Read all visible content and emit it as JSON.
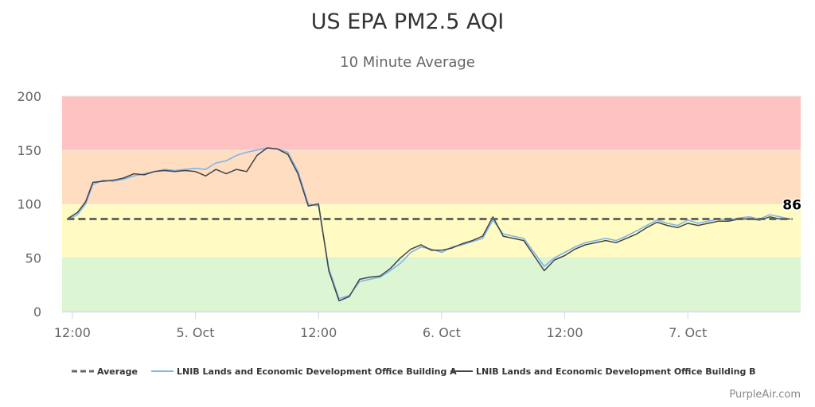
{
  "chart_data": {
    "type": "line",
    "title": "US EPA PM2.5 AQI",
    "subtitle": "10 Minute Average",
    "x_unit": "hours from 4 Oct 00:00",
    "x_ticks": [
      {
        "x": 12,
        "label": "12:00"
      },
      {
        "x": 24,
        "label": "5. Oct"
      },
      {
        "x": 36,
        "label": "12:00"
      },
      {
        "x": 48,
        "label": "6. Oct"
      },
      {
        "x": 60,
        "label": "12:00"
      },
      {
        "x": 72,
        "label": "7. Oct"
      }
    ],
    "xlim": [
      11,
      83
    ],
    "ylim": [
      0,
      200
    ],
    "y_ticks": [
      0,
      50,
      100,
      150,
      200
    ],
    "grid": true,
    "bands": [
      {
        "from": 0,
        "to": 50,
        "color": "#dcf5d3"
      },
      {
        "from": 50,
        "to": 100,
        "color": "#fffbc2"
      },
      {
        "from": 100,
        "to": 150,
        "color": "#ffddc0"
      },
      {
        "from": 150,
        "to": 200,
        "color": "#ffc2c2"
      }
    ],
    "average": {
      "name": "Average",
      "value": 86,
      "color": "#666666"
    },
    "last_value_label": "86",
    "series": [
      {
        "name": "LNIB Lands and Economic Development Office Building A",
        "color": "#7cb5ec",
        "x": [
          11.5,
          12.5,
          13.3,
          14,
          15,
          16,
          17,
          18,
          19,
          20,
          21,
          22,
          23,
          24,
          25,
          26,
          27,
          28,
          29,
          30,
          31,
          32,
          33,
          34,
          35,
          36,
          37,
          38,
          39,
          40,
          41,
          42,
          43,
          44,
          45,
          46,
          47,
          48,
          49,
          50,
          51,
          52,
          53,
          54,
          55,
          56,
          57,
          58,
          59,
          60,
          61,
          62,
          63,
          64,
          65,
          66,
          67,
          68,
          69,
          70,
          71,
          72,
          73,
          74,
          75,
          76,
          77,
          78,
          79,
          80,
          81,
          82
        ],
        "values": [
          85,
          90,
          100,
          118,
          122,
          121,
          123,
          126,
          128,
          130,
          132,
          131,
          132,
          133,
          132,
          138,
          140,
          145,
          148,
          150,
          152,
          151,
          148,
          130,
          100,
          98,
          40,
          12,
          15,
          28,
          30,
          32,
          38,
          45,
          55,
          60,
          58,
          55,
          60,
          62,
          65,
          68,
          85,
          72,
          70,
          68,
          55,
          42,
          50,
          55,
          60,
          64,
          66,
          68,
          66,
          70,
          75,
          80,
          85,
          82,
          80,
          85,
          82,
          84,
          86,
          85,
          87,
          88,
          86,
          90,
          88,
          86
        ]
      },
      {
        "name": "LNIB Lands and Economic Development Office Building B",
        "color": "#434348",
        "x": [
          11.5,
          12.5,
          13.3,
          14,
          15,
          16,
          17,
          18,
          19,
          20,
          21,
          22,
          23,
          24,
          25,
          26,
          27,
          28,
          29,
          30,
          31,
          32,
          33,
          34,
          35,
          36,
          37,
          38,
          39,
          40,
          41,
          42,
          43,
          44,
          45,
          46,
          47,
          48,
          49,
          50,
          51,
          52,
          53,
          54,
          55,
          56,
          57,
          58,
          59,
          60,
          61,
          62,
          63,
          64,
          65,
          66,
          67,
          68,
          69,
          70,
          71,
          72,
          73,
          74,
          75,
          76,
          77,
          78,
          79,
          80,
          81,
          82
        ],
        "values": [
          86,
          92,
          102,
          120,
          121,
          122,
          124,
          128,
          127,
          130,
          131,
          130,
          131,
          130,
          126,
          132,
          128,
          132,
          130,
          145,
          152,
          151,
          146,
          128,
          98,
          100,
          38,
          10,
          14,
          30,
          32,
          33,
          40,
          50,
          58,
          62,
          57,
          57,
          59,
          63,
          66,
          70,
          88,
          70,
          68,
          66,
          52,
          38,
          48,
          52,
          58,
          62,
          64,
          66,
          64,
          68,
          72,
          78,
          83,
          80,
          78,
          82,
          80,
          82,
          84,
          84,
          86,
          86,
          85,
          88,
          86,
          86
        ]
      }
    ]
  },
  "credit": "PurpleAir.com"
}
